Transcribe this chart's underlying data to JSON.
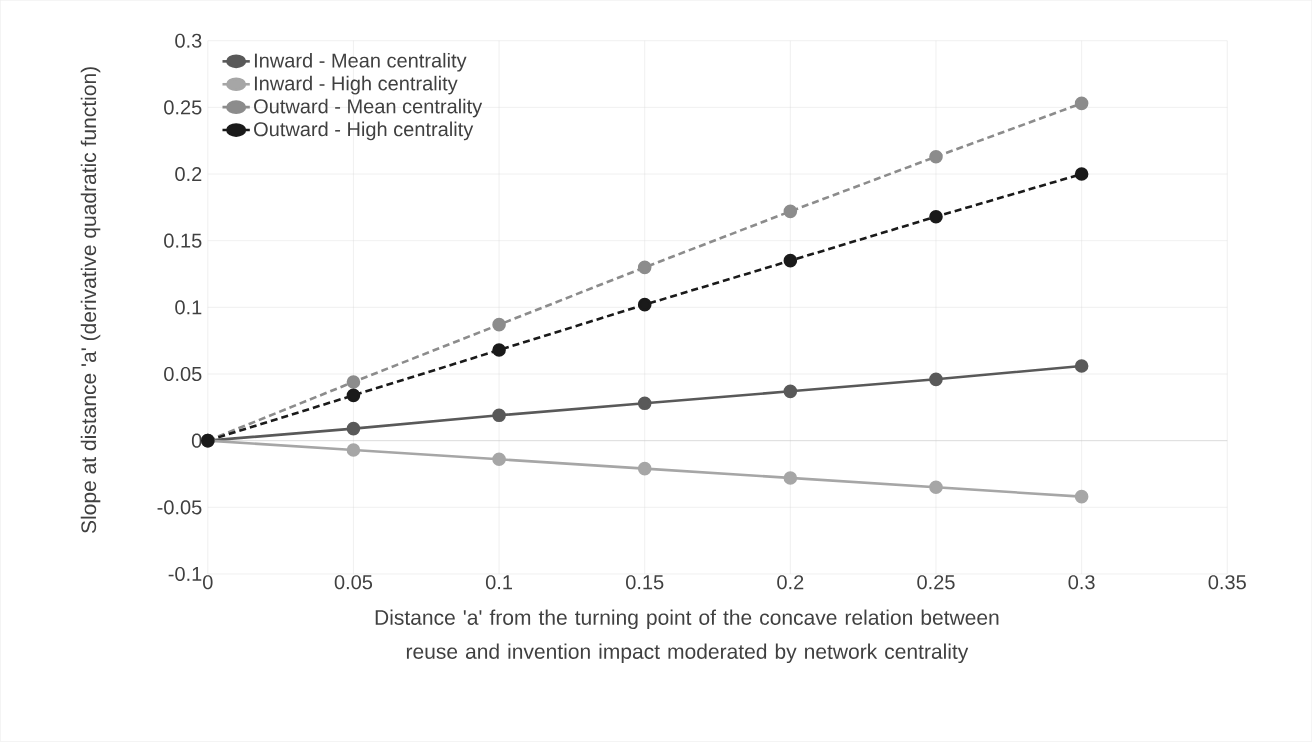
{
  "chart_data": {
    "type": "line",
    "xlabel": "Distance 'a' from the turning point of the concave relation between reuse and invention impact moderated by network centrality",
    "ylabel": "Slope at distance 'a' (derivative quadratic function)",
    "x": [
      0,
      0.05,
      0.1,
      0.15,
      0.2,
      0.25,
      0.3
    ],
    "series": [
      {
        "name": "Inward - Mean centrality",
        "color": "#595959",
        "line_style": "solid",
        "values": [
          0,
          0.009,
          0.019,
          0.028,
          0.037,
          0.046,
          0.056
        ]
      },
      {
        "name": "Inward - High centrality",
        "color": "#a6a6a6",
        "line_style": "solid",
        "values": [
          0,
          -0.007,
          -0.014,
          -0.021,
          -0.028,
          -0.035,
          -0.042
        ]
      },
      {
        "name": "Outward - Mean centrality",
        "color": "#8c8c8c",
        "line_style": "dashed",
        "values": [
          0,
          0.044,
          0.087,
          0.13,
          0.172,
          0.213,
          0.253
        ]
      },
      {
        "name": "Outward - High centrality",
        "color": "#1a1a1a",
        "line_style": "dashed",
        "values": [
          0,
          0.034,
          0.068,
          0.102,
          0.135,
          0.168,
          0.2
        ]
      }
    ],
    "xlim": [
      0,
      0.35
    ],
    "xticks": [
      0,
      0.05,
      0.1,
      0.15,
      0.2,
      0.25,
      0.3,
      0.35
    ],
    "ylim": [
      -0.1,
      0.3
    ],
    "yticks": [
      -0.1,
      -0.05,
      0,
      0.05,
      0.1,
      0.15,
      0.2,
      0.25,
      0.3
    ],
    "grid": true,
    "legend": "top left",
    "marker": "circle"
  }
}
